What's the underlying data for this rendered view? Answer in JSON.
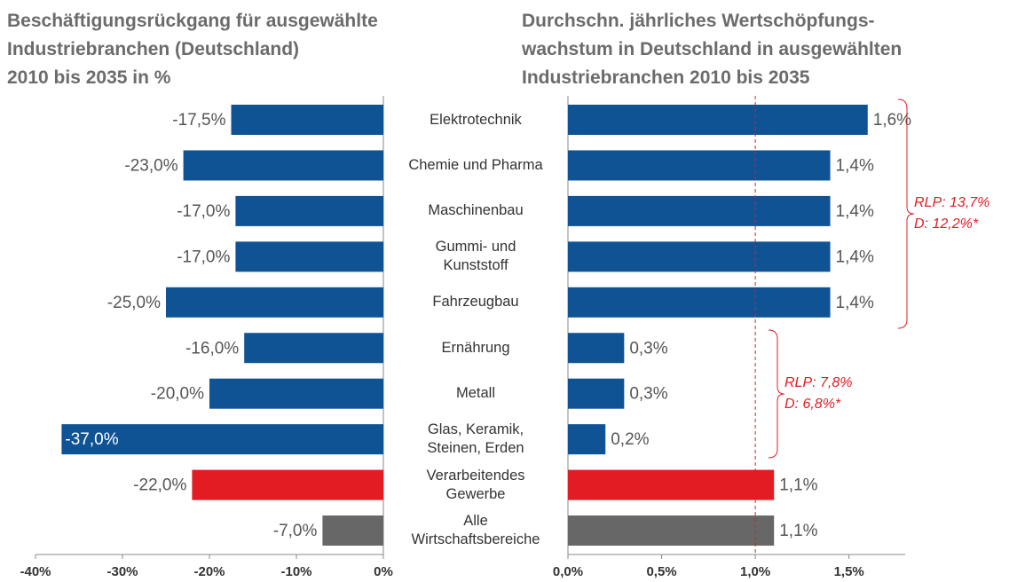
{
  "chart_data": [
    {
      "type": "hbar",
      "title": "Beschäftigungsrückgang für ausgewählte\nIndustriebranchen (Deutschland)\n2010 bis 2035 in %",
      "categories": [
        "Elektrotechnik",
        "Chemie und Pharma",
        "Maschinenbau",
        "Gummi- und\nKunststoff",
        "Fahrzeugbau",
        "Ernährung",
        "Metall",
        "Glas, Keramik,\nSteinen, Erden",
        "Verarbeitendes\nGewerbe",
        "Alle\nWirtschaftsbereiche"
      ],
      "values": [
        -17.5,
        -23.0,
        -17.0,
        -17.0,
        -25.0,
        -16.0,
        -20.0,
        -37.0,
        -22.0,
        -7.0
      ],
      "value_labels": [
        "-17,5%",
        "-23,0%",
        "-17,0%",
        "-17,0%",
        "-25,0%",
        "-16,0%",
        "-20,0%",
        "-37,0%",
        "-22,0%",
        "-7,0%"
      ],
      "colors": [
        "#0f5394",
        "#0f5394",
        "#0f5394",
        "#0f5394",
        "#0f5394",
        "#0f5394",
        "#0f5394",
        "#0f5394",
        "#e31b23",
        "#676767"
      ],
      "xlim": [
        -40,
        0
      ],
      "xticks": [
        {
          "value": -40,
          "label": "-40%"
        },
        {
          "value": -30,
          "label": "-30%"
        },
        {
          "value": -20,
          "label": "-20%"
        },
        {
          "value": -10,
          "label": "-10%"
        },
        {
          "value": 0,
          "label": "0%"
        }
      ]
    },
    {
      "type": "hbar",
      "title": "Durchschn. jährliches Wertschöpfungs-\nwachstum in Deutschland in ausgewählten\nIndustriebranchen 2010 bis 2035",
      "values": [
        1.6,
        1.4,
        1.4,
        1.4,
        1.4,
        0.3,
        0.3,
        0.2,
        1.1,
        1.1
      ],
      "value_labels": [
        "1,6%",
        "1,4%",
        "1,4%",
        "1,4%",
        "1,4%",
        "0,3%",
        "0,3%",
        "0,2%",
        "1,1%",
        "1,1%"
      ],
      "colors": [
        "#0f5394",
        "#0f5394",
        "#0f5394",
        "#0f5394",
        "#0f5394",
        "#0f5394",
        "#0f5394",
        "#0f5394",
        "#e31b23",
        "#676767"
      ],
      "xlim": [
        0,
        1.8
      ],
      "xticks": [
        {
          "value": 0,
          "label": "0,0%"
        },
        {
          "value": 0.5,
          "label": "0,5%"
        },
        {
          "value": 1.0,
          "label": "1,0%"
        },
        {
          "value": 1.5,
          "label": "1,5%"
        }
      ],
      "reference_line": 1.0,
      "annotations": [
        [
          "RLP: 13,7%",
          "D:    12,2%*"
        ],
        [
          "RLP: 7,8%",
          "D:    6,8%*"
        ]
      ]
    }
  ]
}
